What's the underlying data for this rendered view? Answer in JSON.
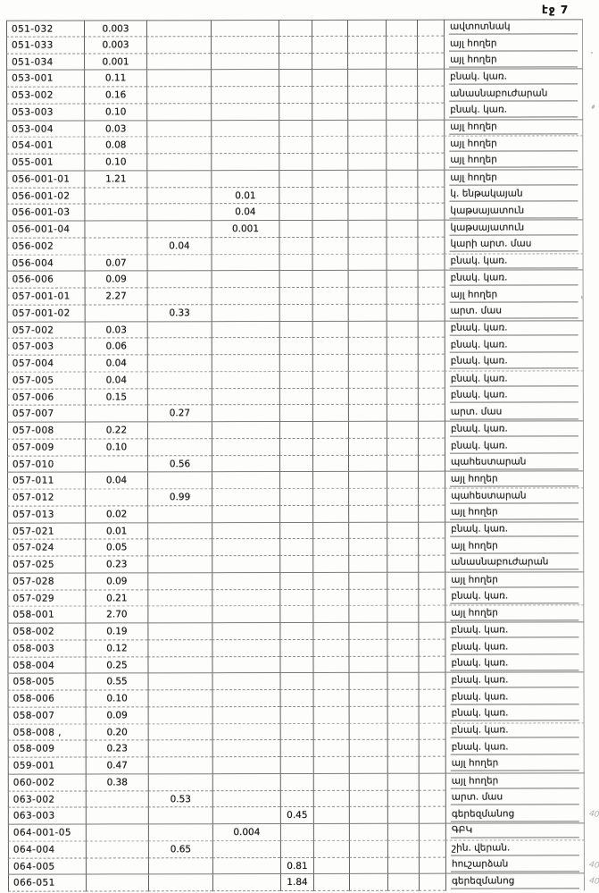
{
  "page": {
    "page_label": "էջ 7"
  },
  "table": {
    "rows": [
      {
        "code": "051-032",
        "col": 1,
        "value": "0.003",
        "label": "ավտոտնակ",
        "note": ""
      },
      {
        "code": "051-033",
        "col": 1,
        "value": "0.003",
        "label": "այլ հողեր",
        "note": ""
      },
      {
        "code": "051-034",
        "col": 1,
        "value": "0.001",
        "label": "այլ հողեր",
        "note": ""
      },
      {
        "code": "053-001",
        "col": 1,
        "value": "0.11",
        "label": "բնակ. կառ.",
        "note": ""
      },
      {
        "code": "053-002",
        "col": 1,
        "value": "0.16",
        "label": "անասնաբուժարան",
        "note": ""
      },
      {
        "code": "053-003",
        "col": 1,
        "value": "0.10",
        "label": "բնակ. կառ.",
        "note": ""
      },
      {
        "code": "053-004",
        "col": 1,
        "value": "0.03",
        "label": "այլ հողեր",
        "note": ""
      },
      {
        "code": "054-001",
        "col": 1,
        "value": "0.08",
        "label": "այլ հողեր",
        "note": ""
      },
      {
        "code": "055-001",
        "col": 1,
        "value": "0.10",
        "label": "այլ հողեր",
        "note": ""
      },
      {
        "code": "056-001-01",
        "col": 1,
        "value": "1.21",
        "label": "այլ հողեր",
        "note": ""
      },
      {
        "code": "056-001-02",
        "col": 3,
        "value": "0.01",
        "label": "կ. ենթակայան",
        "note": ""
      },
      {
        "code": "056-001-03",
        "col": 3,
        "value": "0.04",
        "label": "կաթսայատուն",
        "note": ""
      },
      {
        "code": "056-001-04",
        "col": 3,
        "value": "0.001",
        "label": "կաթսայատուն",
        "note": ""
      },
      {
        "code": "056-002",
        "col": 2,
        "value": "0.04",
        "label": "կարի արտ. մաս",
        "note": ""
      },
      {
        "code": "056-004",
        "col": 1,
        "value": "0.07",
        "label": "բնակ. կառ.",
        "note": ""
      },
      {
        "code": "056-006",
        "col": 1,
        "value": "0.09",
        "label": "բնակ. կառ.",
        "note": ""
      },
      {
        "code": "057-001-01",
        "col": 1,
        "value": "2.27",
        "label": "այլ հողեր",
        "note": ""
      },
      {
        "code": "057-001-02",
        "col": 2,
        "value": "0.33",
        "label": "արտ. մաս",
        "note": ""
      },
      {
        "code": "057-002",
        "col": 1,
        "value": "0.03",
        "label": "բնակ. կառ.",
        "note": ""
      },
      {
        "code": "057-003",
        "col": 1,
        "value": "0.06",
        "label": "բնակ. կառ.",
        "note": ""
      },
      {
        "code": "057-004",
        "col": 1,
        "value": "0.04",
        "label": "բնակ. կառ.",
        "note": ""
      },
      {
        "code": "057-005",
        "col": 1,
        "value": "0.04",
        "label": "բնակ. կառ.",
        "note": ""
      },
      {
        "code": "057-006",
        "col": 1,
        "value": "0.15",
        "label": "բնակ. կառ.",
        "note": ""
      },
      {
        "code": "057-007",
        "col": 2,
        "value": "0.27",
        "label": "արտ. մաս",
        "note": ""
      },
      {
        "code": "057-008",
        "col": 1,
        "value": "0.22",
        "label": "բնակ. կառ.",
        "note": ""
      },
      {
        "code": "057-009",
        "col": 1,
        "value": "0.10",
        "label": "բնակ. կառ.",
        "note": ""
      },
      {
        "code": "057-010",
        "col": 2,
        "value": "0.56",
        "label": "պահեստարան",
        "note": ""
      },
      {
        "code": "057-011",
        "col": 1,
        "value": "0.04",
        "label": "այլ հողեր",
        "note": ""
      },
      {
        "code": "057-012",
        "col": 2,
        "value": "0.99",
        "label": "պահեստարան",
        "note": ""
      },
      {
        "code": "057-013",
        "col": 1,
        "value": "0.02",
        "label": "այլ հողեր",
        "note": ""
      },
      {
        "code": "057-021",
        "col": 1,
        "value": "0.01",
        "label": "բնակ. կառ.",
        "note": ""
      },
      {
        "code": "057-024",
        "col": 1,
        "value": "0.05",
        "label": "այլ հողեր",
        "note": ""
      },
      {
        "code": "057-025",
        "col": 1,
        "value": "0.23",
        "label": "անասնաբուժարան",
        "note": ""
      },
      {
        "code": "057-028",
        "col": 1,
        "value": "0.09",
        "label": "այլ հողեր",
        "note": ""
      },
      {
        "code": "057-029",
        "col": 1,
        "value": "0.21",
        "label": "բնակ. կառ.",
        "note": ""
      },
      {
        "code": "058-001",
        "col": 1,
        "value": "2.70",
        "label": "այլ հողեր",
        "note": ""
      },
      {
        "code": "058-002",
        "col": 1,
        "value": "0.19",
        "label": "բնակ. կառ.",
        "note": ""
      },
      {
        "code": "058-003",
        "col": 1,
        "value": "0.12",
        "label": "բնակ. կառ.",
        "note": ""
      },
      {
        "code": "058-004",
        "col": 1,
        "value": "0.25",
        "label": "բնակ. կառ.",
        "note": ""
      },
      {
        "code": "058-005",
        "col": 1,
        "value": "0.55",
        "label": "բնակ. կառ.",
        "note": ""
      },
      {
        "code": "058-006",
        "col": 1,
        "value": "0.10",
        "label": "բնակ. կառ.",
        "note": ""
      },
      {
        "code": "058-007",
        "col": 1,
        "value": "0.09",
        "label": "բնակ. կառ.",
        "note": ""
      },
      {
        "code": "058-008 ,",
        "col": 1,
        "value": "0.20",
        "label": "բնակ. կառ.",
        "note": ""
      },
      {
        "code": "058-009",
        "col": 1,
        "value": "0.23",
        "label": "բնակ. կառ.",
        "note": ""
      },
      {
        "code": "059-001",
        "col": 1,
        "value": "0.47",
        "label": "այլ հողեր",
        "note": ""
      },
      {
        "code": "060-002",
        "col": 1,
        "value": "0.38",
        "label": "այլ հողեր",
        "note": ""
      },
      {
        "code": "063-002",
        "col": 2,
        "value": "0.53",
        "label": "արտ. մաս",
        "note": ""
      },
      {
        "code": "063-003",
        "col": 4,
        "value": "0.45",
        "label": "գերեզմանոց",
        "note": "40"
      },
      {
        "code": "064-001-05",
        "col": 3,
        "value": "0.004",
        "label": "ԳԲԿ",
        "note": ""
      },
      {
        "code": "064-004",
        "col": 2,
        "value": "0.65",
        "label": "շին. վերան.",
        "note": ""
      },
      {
        "code": "064-005",
        "col": 4,
        "value": "0.81",
        "label": "հուշարձան",
        "note": "40"
      },
      {
        "code": "066-051",
        "col": 4,
        "value": "1.84",
        "label": "գերեզմանոց",
        "note": "40"
      }
    ]
  }
}
